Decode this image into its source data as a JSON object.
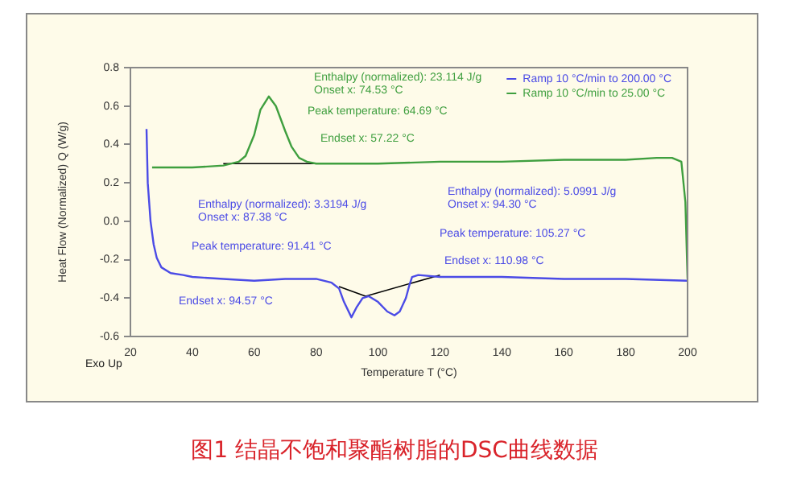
{
  "chart_data": {
    "type": "line",
    "title": "图1 结晶不饱和聚酯树脂的DSC曲线数据",
    "xlabel": "Temperature T (°C)",
    "ylabel": "Heat Flow (Normalized) Q (W/g)",
    "xlim": [
      20,
      200
    ],
    "xticks": [
      20,
      40,
      60,
      80,
      100,
      120,
      140,
      160,
      180,
      200
    ],
    "ylim": [
      -0.6,
      0.8
    ],
    "yticks": [
      -0.6,
      -0.4,
      -0.2,
      {
        "value": 0,
        "label": "0.0"
      },
      0.2,
      0.4,
      0.6,
      0.8
    ],
    "legend": "top right",
    "grid": false,
    "marker": "none",
    "line_style": "solid",
    "series": [
      {
        "name": "Ramp 10 °C/min to 200.00 °C",
        "color": "#4b4be6",
        "x": [
          25.2,
          25.6,
          26.5,
          27.5,
          28.5,
          30,
          33,
          37,
          40,
          50,
          60,
          70,
          80,
          85,
          87.4,
          89,
          91.4,
          93,
          95,
          97,
          100,
          103,
          105.3,
          107,
          109,
          110,
          111,
          113,
          120,
          140,
          160,
          180,
          200
        ],
        "values": [
          0.48,
          0.2,
          0.0,
          -0.12,
          -0.19,
          -0.24,
          -0.27,
          -0.28,
          -0.29,
          -0.3,
          -0.31,
          -0.3,
          -0.3,
          -0.32,
          -0.35,
          -0.42,
          -0.5,
          -0.45,
          -0.4,
          -0.39,
          -0.42,
          -0.47,
          -0.49,
          -0.47,
          -0.4,
          -0.34,
          -0.29,
          -0.28,
          -0.29,
          -0.29,
          -0.3,
          -0.3,
          -0.31
        ]
      },
      {
        "name": "Ramp 10 °C/min to 25.00 °C",
        "color": "#3f9f3f",
        "x": [
          27,
          40,
          50,
          55,
          57.2,
          60,
          62,
          64.7,
          67,
          70,
          72,
          74.5,
          77,
          80,
          100,
          120,
          140,
          160,
          180,
          190,
          195,
          198,
          199.3,
          200
        ],
        "values": [
          0.28,
          0.28,
          0.29,
          0.31,
          0.34,
          0.45,
          0.58,
          0.65,
          0.6,
          0.47,
          0.39,
          0.33,
          0.31,
          0.3,
          0.3,
          0.31,
          0.31,
          0.32,
          0.32,
          0.33,
          0.33,
          0.31,
          0.1,
          -0.3
        ]
      },
      {
        "color": "#000000",
        "x": [
          50,
          80
        ],
        "values": [
          0.3,
          0.3
        ]
      },
      {
        "color": "#000000",
        "x": [
          87.4,
          96,
          120
        ],
        "values": [
          -0.34,
          -0.39,
          -0.28
        ]
      }
    ],
    "annotations": [
      "Enthalpy (normalized): 23.114 J/g",
      "Onset x: 74.53 °C",
      "Peak temperature: 64.69 °C",
      "Endset x: 57.22 °C",
      "Enthalpy (normalized): 3.3194 J/g",
      "Onset x: 87.38 °C",
      "Peak temperature: 91.41 °C",
      "Endset x: 94.57 °C",
      "Enthalpy (normalized): 5.0991 J/g",
      "Onset x: 94.30 °C",
      "Peak temperature: 105.27 °C",
      "Endset x: 110.98 °C",
      "Exo Up"
    ]
  }
}
